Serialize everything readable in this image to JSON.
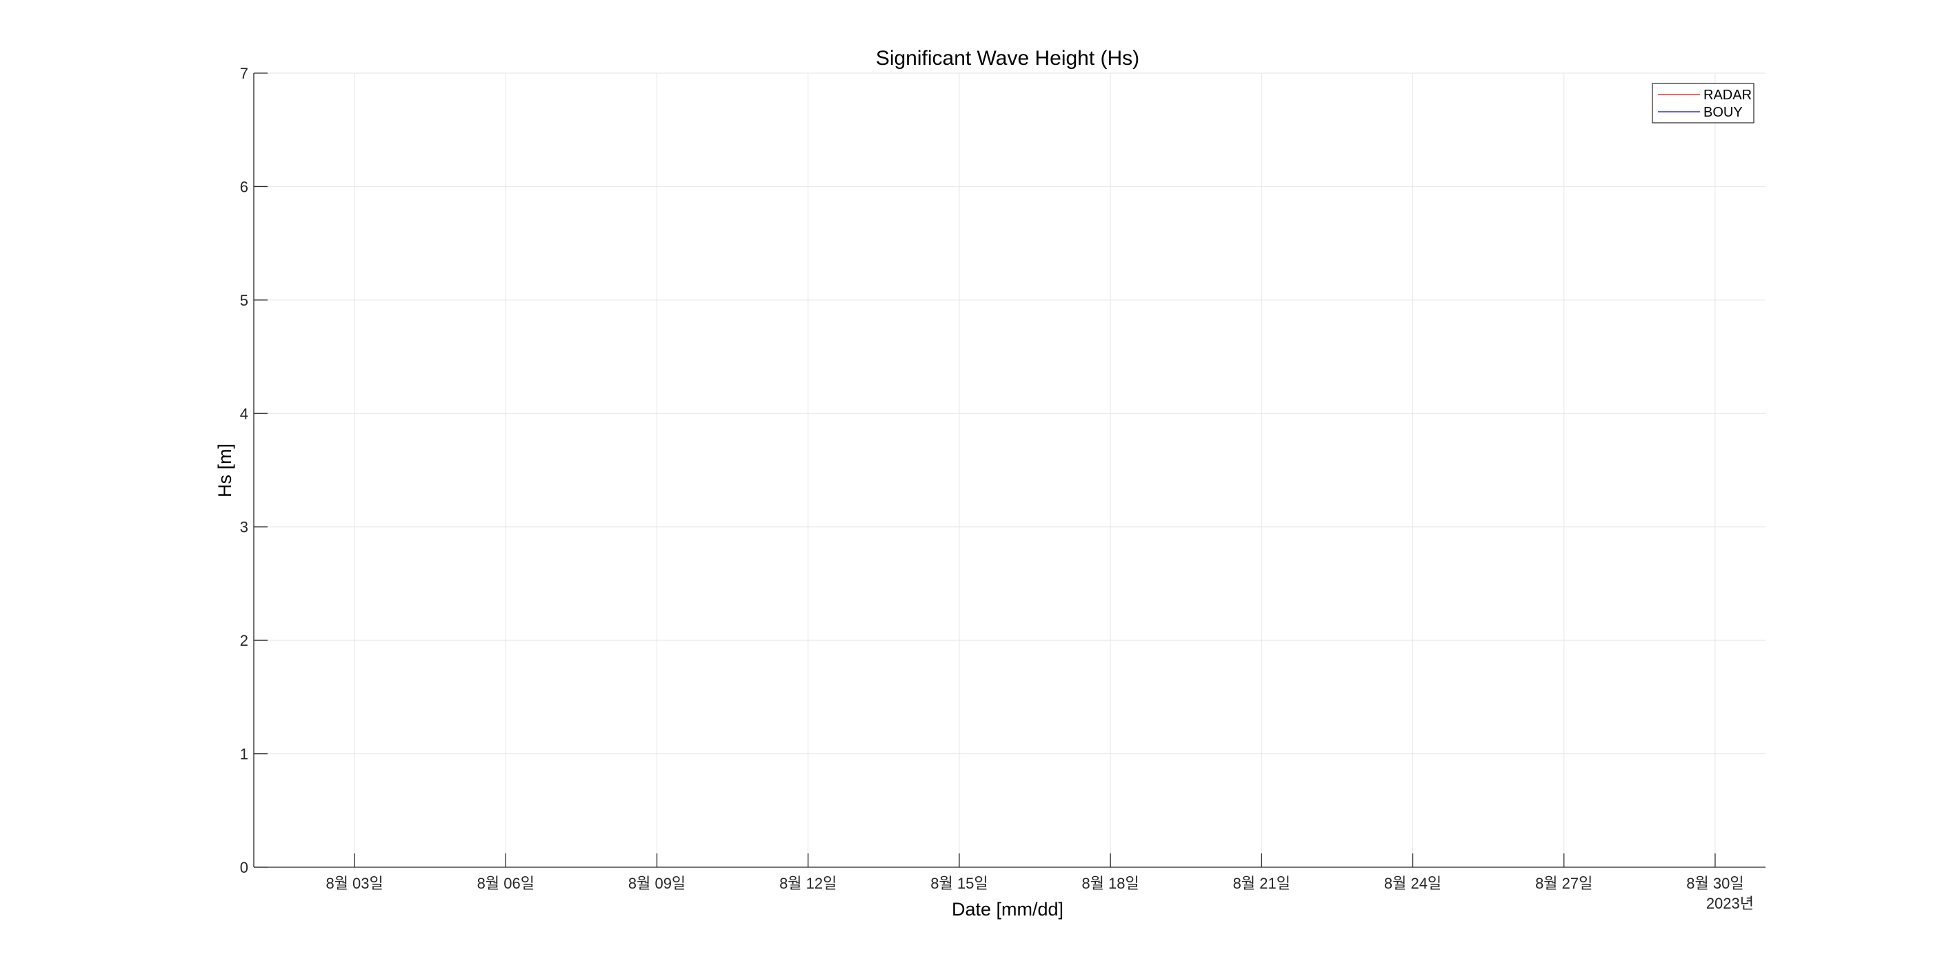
{
  "chart_data": {
    "type": "line",
    "title": "Significant Wave Height (Hs)",
    "xlabel": "Date [mm/dd]",
    "ylabel": "Hs [m]",
    "x_ticks": [
      "8월 03일",
      "8월 06일",
      "8월 09일",
      "8월 12일",
      "8월 15일",
      "8월 18일",
      "8월 21일",
      "8월 24일",
      "8월 27일",
      "8월 30일"
    ],
    "x_secondary_label": "2023년",
    "xlim": [
      "2023-08-01",
      "2023-08-31"
    ],
    "ylim": [
      0,
      7
    ],
    "y_ticks": [
      "0",
      "1",
      "2",
      "3",
      "4",
      "5",
      "6",
      "7"
    ],
    "grid": true,
    "legend_position": "top-right",
    "series": [
      {
        "name": "RADAR",
        "color": "#ff0000",
        "x": [],
        "y": []
      },
      {
        "name": "BOUY",
        "color": "#0000ff",
        "x": [],
        "y": []
      }
    ]
  }
}
